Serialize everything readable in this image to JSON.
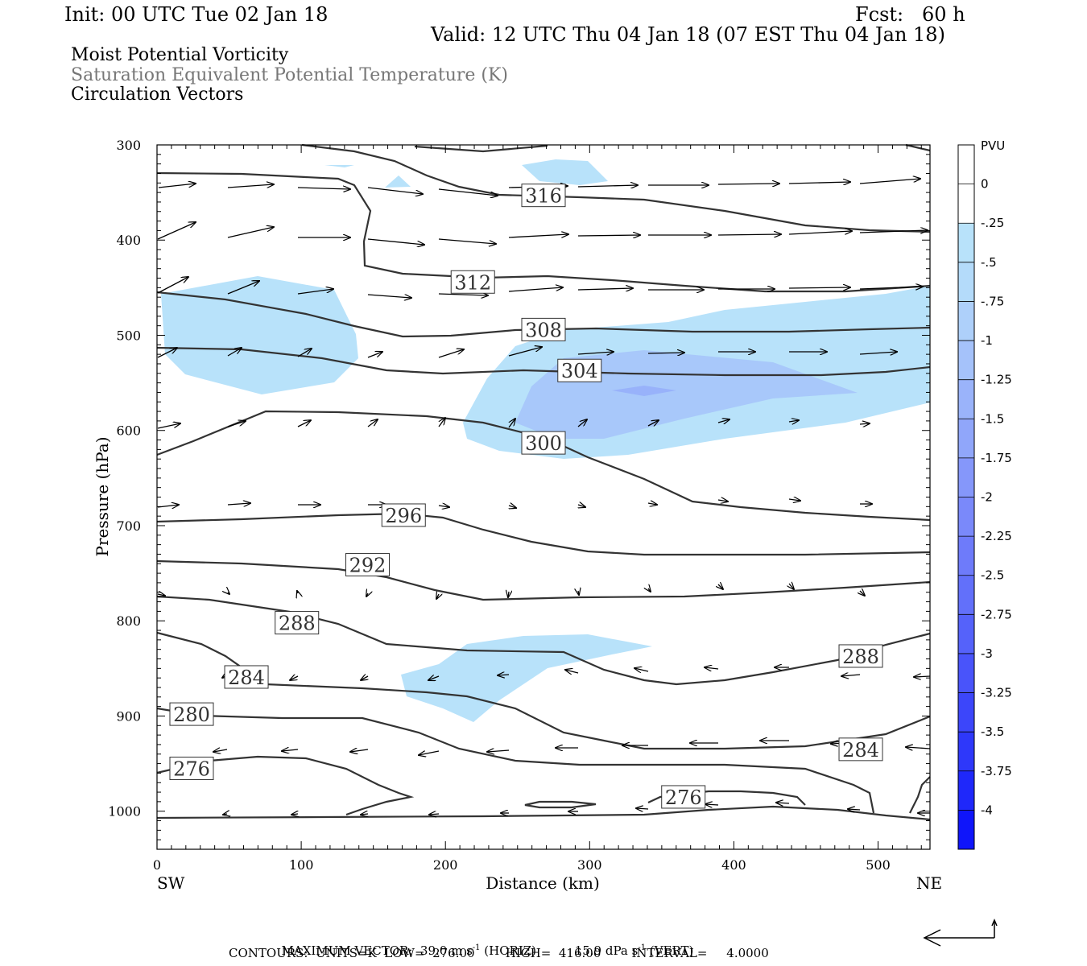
{
  "header": {
    "init": "Init: 00 UTC Tue 02 Jan 18",
    "fcst": "Fcst:   60 h",
    "valid": "Valid: 12 UTC Thu 04 Jan 18 (07 EST Thu 04 Jan 18)"
  },
  "titles": [
    {
      "text": "Moist Potential Vorticity",
      "color": "#000000"
    },
    {
      "text": "Saturation Equivalent Potential Temperature (K)",
      "color": "#777777"
    },
    {
      "text": "Circulation Vectors",
      "color": "#000000"
    }
  ],
  "footer": {
    "line1_prefix": "MAXIMUM VECTOR:  39.0 m s",
    "line1_sup1": "-1",
    "line1_mid": " (HORIZ)          15.9 dPa s",
    "line1_sup2": "-1",
    "line1_suffix": " (VERT)",
    "line2": "CONTOURS:  UNITS=K  LOW=  276.00        HIGH=  416.00        INTERVAL=     4.0000"
  },
  "chart_data": {
    "type": "cross-section contour",
    "xlabel": "Distance (km)",
    "ylabel": "Pressure (hPa)",
    "x_ticks": [
      0,
      100,
      200,
      300,
      400,
      500
    ],
    "y_ticks": [
      300,
      400,
      500,
      600,
      700,
      800,
      900,
      1000
    ],
    "xlim": [
      0,
      536
    ],
    "ylim": [
      300,
      1040
    ],
    "x_endpoints": {
      "left": "SW",
      "right": "NE"
    },
    "colorbar": {
      "unit": "PVU",
      "labels": [
        "0",
        "-.25",
        "-.5",
        "-.75",
        "-1",
        "-1.25",
        "-1.5",
        "-1.75",
        "-2",
        "-2.25",
        "-2.5",
        "-2.75",
        "-3",
        "-3.25",
        "-3.5",
        "-3.75",
        "-4"
      ],
      "colors": [
        "#ffffff",
        "#ffffff",
        "#b8e2fa",
        "#b4dbfa",
        "#aed0fa",
        "#a5c2fa",
        "#9ab3fa",
        "#90a6fa",
        "#8597fa",
        "#7a89fa",
        "#6e7bfa",
        "#6270fa",
        "#5562fa",
        "#4954fa",
        "#3c46fa",
        "#2e38fa",
        "#1f28fa",
        "#0f15fa"
      ]
    },
    "contour_labels": [
      {
        "value": "316",
        "x": 268,
        "p": 353
      },
      {
        "value": "312",
        "x": 219,
        "p": 444
      },
      {
        "value": "308",
        "x": 268,
        "p": 494
      },
      {
        "value": "304",
        "x": 293,
        "p": 537
      },
      {
        "value": "300",
        "x": 268,
        "p": 613
      },
      {
        "value": "296",
        "x": 171,
        "p": 689
      },
      {
        "value": "292",
        "x": 146,
        "p": 741
      },
      {
        "value": "288",
        "x": 97,
        "p": 802
      },
      {
        "value": "288",
        "x": 488,
        "p": 837
      },
      {
        "value": "284",
        "x": 62,
        "p": 859
      },
      {
        "value": "280",
        "x": 24,
        "p": 898
      },
      {
        "value": "276",
        "x": 24,
        "p": 955
      },
      {
        "value": "284",
        "x": 488,
        "p": 935
      },
      {
        "value": "276",
        "x": 365,
        "p": 985
      }
    ]
  }
}
